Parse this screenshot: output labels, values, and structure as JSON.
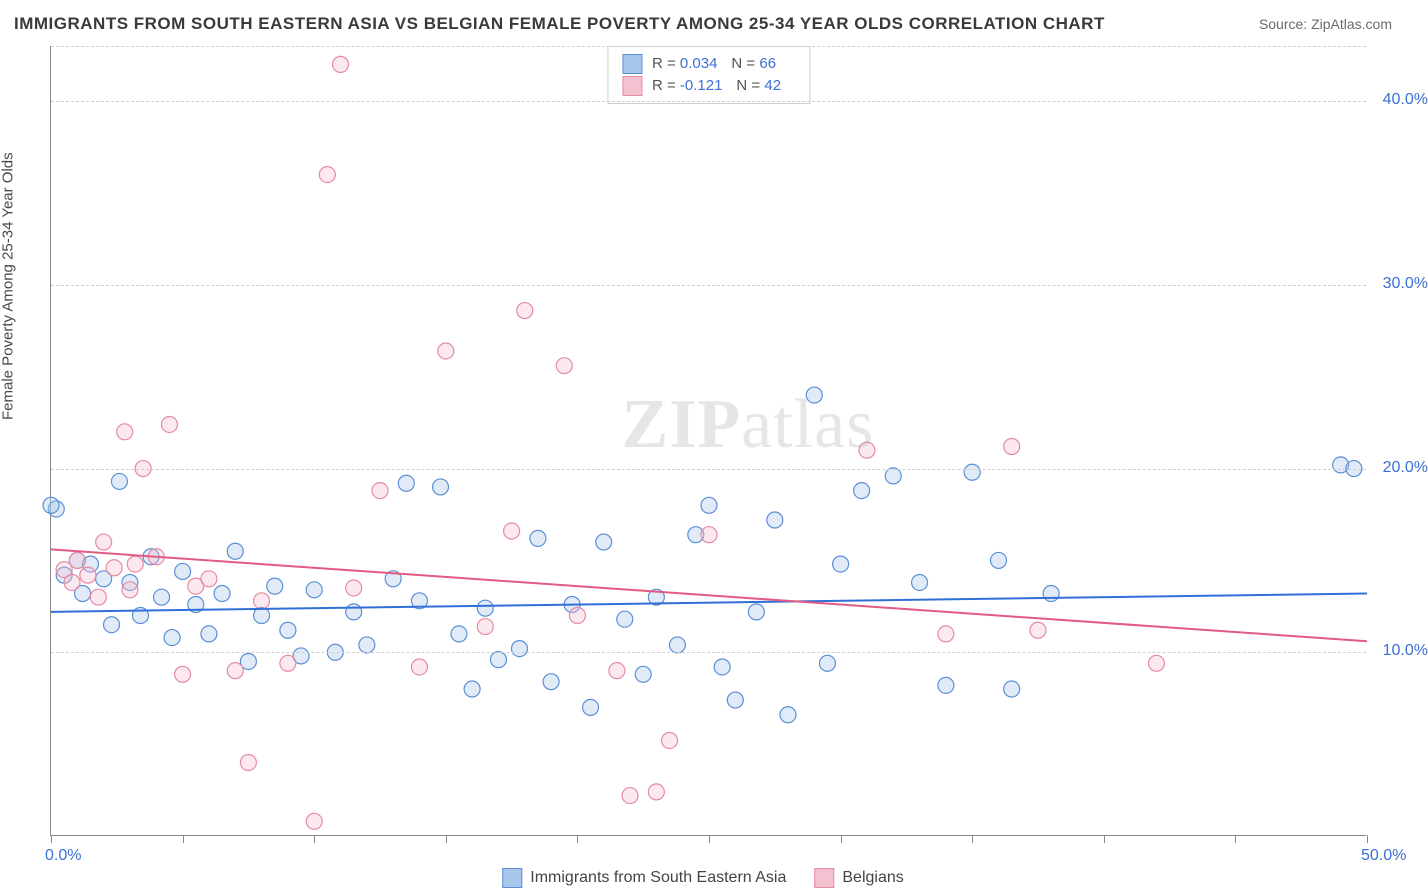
{
  "header": {
    "title": "IMMIGRANTS FROM SOUTH EASTERN ASIA VS BELGIAN FEMALE POVERTY AMONG 25-34 YEAR OLDS CORRELATION CHART",
    "source": "Source: ZipAtlas.com"
  },
  "chart": {
    "type": "scatter",
    "ylabel": "Female Poverty Among 25-34 Year Olds",
    "xlim": [
      0,
      50
    ],
    "ylim": [
      0,
      43
    ],
    "x_ticks": [
      0,
      5,
      10,
      15,
      20,
      25,
      30,
      35,
      40,
      45,
      50
    ],
    "x_tick_labels": {
      "0": "0.0%",
      "50": "50.0%"
    },
    "y_gridlines": [
      10,
      20,
      30,
      40
    ],
    "y_tick_labels": {
      "10": "10.0%",
      "20": "20.0%",
      "30": "30.0%",
      "40": "40.0%"
    },
    "background_color": "#ffffff",
    "grid_color": "#cfcfcf",
    "axis_color": "#888888",
    "tick_label_color": "#3b6fd6",
    "label_fontsize": 15,
    "watermark": "ZIPatlas",
    "marker_radius": 8,
    "marker_fill_opacity": 0.35,
    "series": [
      {
        "name": "Immigrants from South Eastern Asia",
        "color_stroke": "#5b8fd6",
        "color_fill": "#a8c6ec",
        "r_value": "0.034",
        "n_value": "66",
        "trend": {
          "y_at_x0": 12.2,
          "y_at_x50": 13.2,
          "line_color": "#2f6fd6",
          "line_width": 2
        },
        "points": [
          [
            0.2,
            17.8
          ],
          [
            0.5,
            14.2
          ],
          [
            1.0,
            15.0
          ],
          [
            1.2,
            13.2
          ],
          [
            1.5,
            14.8
          ],
          [
            2.0,
            14.0
          ],
          [
            2.3,
            11.5
          ],
          [
            2.6,
            19.3
          ],
          [
            3.0,
            13.8
          ],
          [
            3.4,
            12.0
          ],
          [
            3.8,
            15.2
          ],
          [
            4.2,
            13.0
          ],
          [
            4.6,
            10.8
          ],
          [
            5.0,
            14.4
          ],
          [
            5.5,
            12.6
          ],
          [
            6.0,
            11.0
          ],
          [
            6.5,
            13.2
          ],
          [
            7.0,
            15.5
          ],
          [
            7.5,
            9.5
          ],
          [
            8.0,
            12.0
          ],
          [
            8.5,
            13.6
          ],
          [
            9.0,
            11.2
          ],
          [
            9.5,
            9.8
          ],
          [
            10.0,
            13.4
          ],
          [
            10.8,
            10.0
          ],
          [
            11.5,
            12.2
          ],
          [
            12.0,
            10.4
          ],
          [
            13.0,
            14.0
          ],
          [
            13.5,
            19.2
          ],
          [
            14.0,
            12.8
          ],
          [
            14.8,
            19.0
          ],
          [
            15.5,
            11.0
          ],
          [
            16.0,
            8.0
          ],
          [
            16.5,
            12.4
          ],
          [
            17.0,
            9.6
          ],
          [
            17.8,
            10.2
          ],
          [
            18.5,
            16.2
          ],
          [
            19.0,
            8.4
          ],
          [
            19.8,
            12.6
          ],
          [
            20.5,
            7.0
          ],
          [
            21.0,
            16.0
          ],
          [
            21.8,
            11.8
          ],
          [
            22.5,
            8.8
          ],
          [
            23.0,
            13.0
          ],
          [
            23.8,
            10.4
          ],
          [
            24.5,
            16.4
          ],
          [
            25.0,
            18.0
          ],
          [
            25.5,
            9.2
          ],
          [
            26.0,
            7.4
          ],
          [
            26.8,
            12.2
          ],
          [
            27.5,
            17.2
          ],
          [
            28.0,
            6.6
          ],
          [
            29.0,
            24.0
          ],
          [
            29.5,
            9.4
          ],
          [
            30.0,
            14.8
          ],
          [
            30.8,
            18.8
          ],
          [
            32.0,
            19.6
          ],
          [
            33.0,
            13.8
          ],
          [
            34.0,
            8.2
          ],
          [
            35.0,
            19.8
          ],
          [
            36.0,
            15.0
          ],
          [
            36.5,
            8.0
          ],
          [
            38.0,
            13.2
          ],
          [
            49.0,
            20.2
          ],
          [
            49.5,
            20.0
          ],
          [
            0.0,
            18.0
          ]
        ]
      },
      {
        "name": "Belgians",
        "color_stroke": "#e68aa4",
        "color_fill": "#f4c1d0",
        "r_value": "-0.121",
        "n_value": "42",
        "trend": {
          "y_at_x0": 15.6,
          "y_at_x50": 10.6,
          "line_color": "#e25b82",
          "line_width": 2
        },
        "points": [
          [
            0.5,
            14.5
          ],
          [
            0.8,
            13.8
          ],
          [
            1.0,
            15.0
          ],
          [
            1.4,
            14.2
          ],
          [
            1.8,
            13.0
          ],
          [
            2.0,
            16.0
          ],
          [
            2.4,
            14.6
          ],
          [
            2.8,
            22.0
          ],
          [
            3.0,
            13.4
          ],
          [
            3.5,
            20.0
          ],
          [
            4.0,
            15.2
          ],
          [
            4.5,
            22.4
          ],
          [
            5.0,
            8.8
          ],
          [
            5.5,
            13.6
          ],
          [
            6.0,
            14.0
          ],
          [
            7.0,
            9.0
          ],
          [
            7.5,
            4.0
          ],
          [
            8.0,
            12.8
          ],
          [
            9.0,
            9.4
          ],
          [
            10.0,
            0.8
          ],
          [
            10.5,
            36.0
          ],
          [
            11.0,
            42.0
          ],
          [
            11.5,
            13.5
          ],
          [
            12.5,
            18.8
          ],
          [
            14.0,
            9.2
          ],
          [
            15.0,
            26.4
          ],
          [
            16.5,
            11.4
          ],
          [
            17.5,
            16.6
          ],
          [
            18.0,
            28.6
          ],
          [
            19.5,
            25.6
          ],
          [
            20.0,
            12.0
          ],
          [
            21.5,
            9.0
          ],
          [
            22.0,
            2.2
          ],
          [
            23.0,
            2.4
          ],
          [
            23.5,
            5.2
          ],
          [
            25.0,
            16.4
          ],
          [
            31.0,
            21.0
          ],
          [
            34.0,
            11.0
          ],
          [
            36.5,
            21.2
          ],
          [
            37.5,
            11.2
          ],
          [
            42.0,
            9.4
          ],
          [
            3.2,
            14.8
          ]
        ]
      }
    ]
  }
}
